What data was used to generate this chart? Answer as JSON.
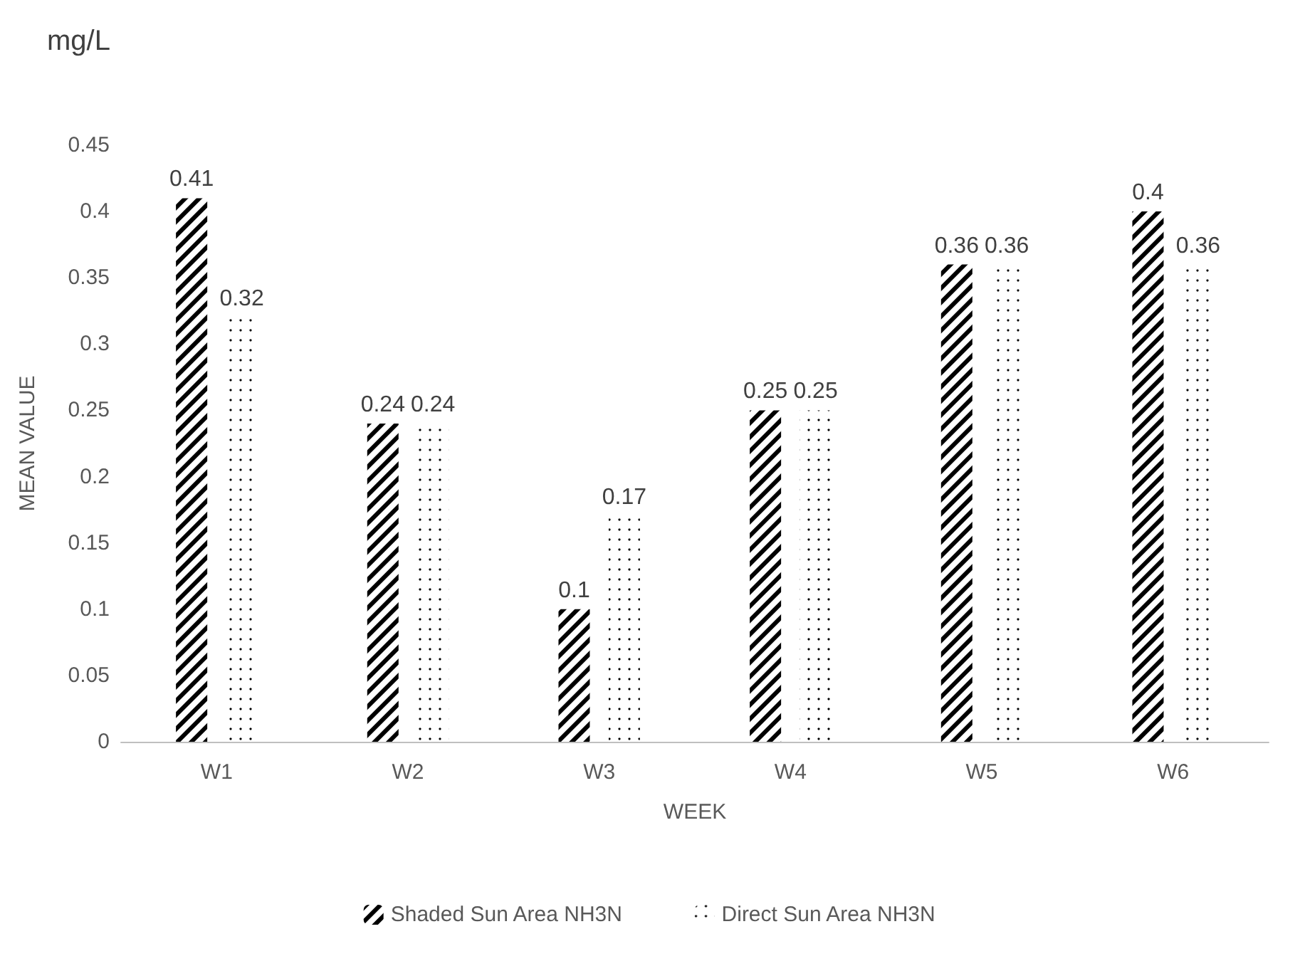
{
  "chart_data": {
    "type": "bar",
    "title": "mg/L",
    "xlabel": "WEEK",
    "ylabel": "MEAN VALUE",
    "categories": [
      "W1",
      "W2",
      "W3",
      "W4",
      "W5",
      "W6"
    ],
    "series": [
      {
        "name": "Shaded Sun Area NH3N",
        "color": "#000000",
        "values": [
          0.41,
          0.24,
          0.1,
          0.25,
          0.36,
          0.4
        ]
      },
      {
        "name": "Direct Sun Area NH3N",
        "color": "#000000",
        "values": [
          0.32,
          0.24,
          0.17,
          0.25,
          0.36,
          0.36
        ]
      }
    ],
    "ylim": [
      0,
      0.45
    ],
    "yticks": [
      0,
      0.05,
      0.1,
      0.15,
      0.2,
      0.25,
      0.3,
      0.35,
      0.4,
      0.45
    ],
    "grid": false,
    "legend": "bottom",
    "data_labels": true
  }
}
